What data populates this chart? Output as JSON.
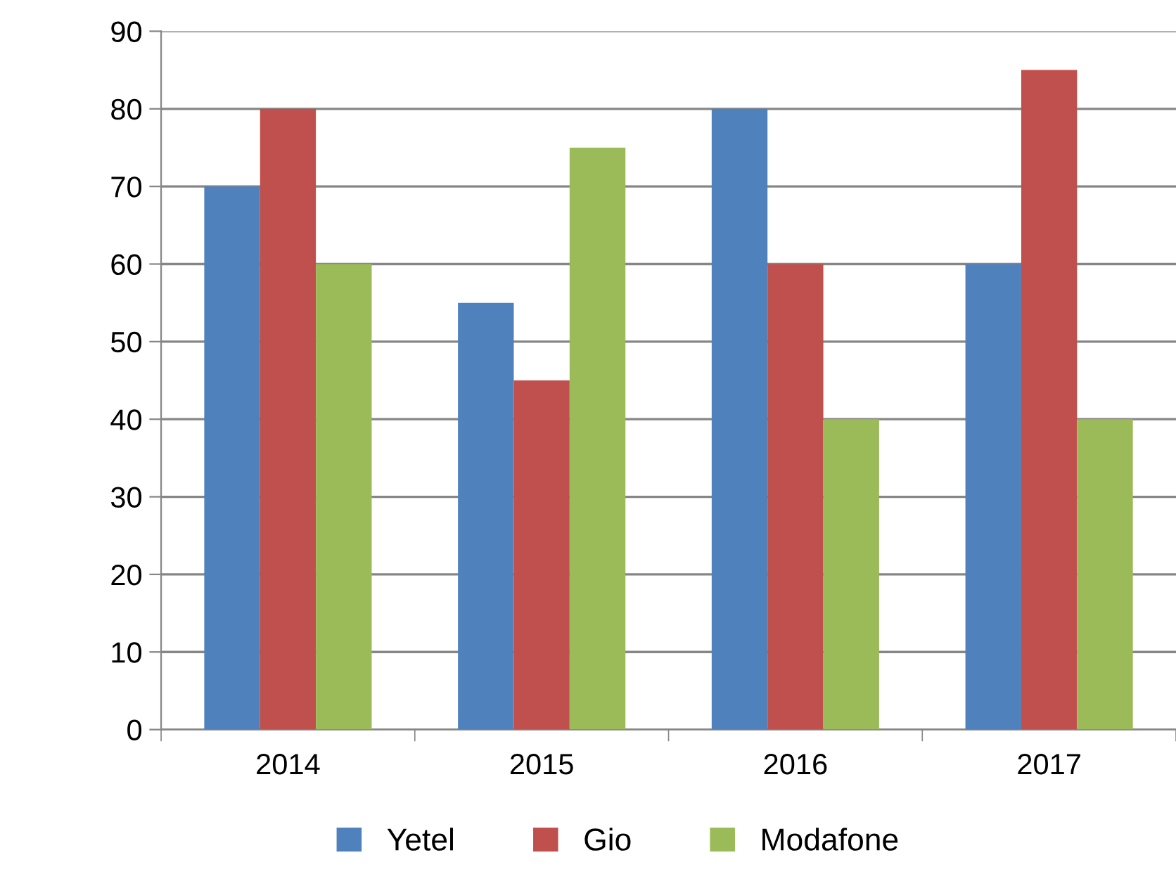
{
  "chart_data": {
    "type": "bar",
    "categories": [
      "2014",
      "2015",
      "2016",
      "2017"
    ],
    "series": [
      {
        "name": "Yetel",
        "color": "#4f81bd",
        "values": [
          70,
          55,
          80,
          60
        ]
      },
      {
        "name": "Gio",
        "color": "#c0504d",
        "values": [
          80,
          45,
          60,
          85
        ]
      },
      {
        "name": "Modafone",
        "color": "#9bbb59",
        "values": [
          60,
          75,
          40,
          40
        ]
      }
    ],
    "ylim": [
      0,
      90
    ],
    "yticks": [
      0,
      10,
      20,
      30,
      40,
      50,
      60,
      70,
      80,
      90
    ],
    "grid": "y",
    "legend": "bottom"
  }
}
